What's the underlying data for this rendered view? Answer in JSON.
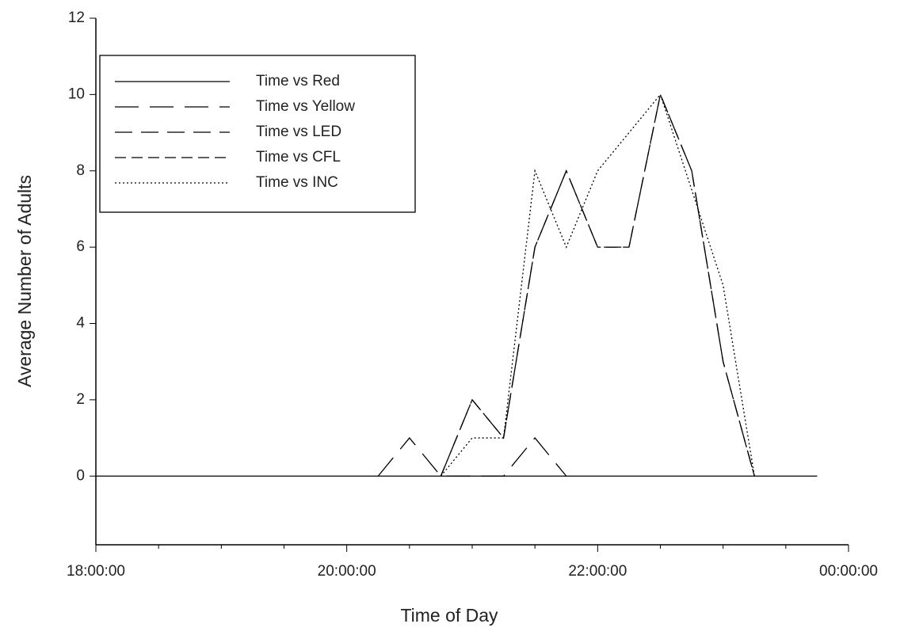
{
  "chart_data": {
    "type": "line",
    "xlabel": "Time of Day",
    "ylabel": "Average Number of Adults",
    "x": [
      18.0,
      18.25,
      18.5,
      18.75,
      19.0,
      19.25,
      19.5,
      19.75,
      20.0,
      20.25,
      20.5,
      20.75,
      21.0,
      21.25,
      21.5,
      21.75,
      22.0,
      22.25,
      22.5,
      22.75,
      23.0,
      23.25,
      23.5,
      23.75
    ],
    "series": [
      {
        "name": "Time vs Red",
        "color": "#000000",
        "dash": "none",
        "values": [
          0,
          0,
          0,
          0,
          0,
          0,
          0,
          0,
          0,
          0,
          0,
          0,
          0,
          0,
          0,
          0,
          0,
          0,
          0,
          0,
          0,
          0,
          0,
          0
        ]
      },
      {
        "name": "Time vs Yellow",
        "color": "#000000",
        "dash": "30,14",
        "values": [
          null,
          null,
          null,
          null,
          null,
          null,
          null,
          null,
          null,
          0,
          1,
          0,
          0,
          0,
          1,
          0,
          null,
          null,
          null,
          null,
          null,
          null,
          null,
          null
        ]
      },
      {
        "name": "Time vs LED",
        "color": "#000000",
        "dash": "22,11",
        "values": [
          null,
          null,
          null,
          null,
          null,
          null,
          null,
          null,
          null,
          null,
          null,
          0,
          2,
          1,
          6,
          8,
          6,
          6,
          10,
          8,
          3,
          0,
          null,
          null
        ]
      },
      {
        "name": "Time vs CFL",
        "color": "#000000",
        "dash": "14,7",
        "values": [
          null,
          null,
          null,
          null,
          null,
          null,
          null,
          null,
          null,
          null,
          null,
          0,
          2,
          1,
          6,
          8,
          6,
          6,
          10,
          8,
          3,
          0,
          null,
          null
        ]
      },
      {
        "name": "Time vs INC",
        "color": "#000000",
        "dash": "2,3",
        "values": [
          null,
          null,
          null,
          null,
          null,
          null,
          null,
          null,
          null,
          null,
          null,
          0,
          1,
          1,
          8,
          6,
          8,
          9,
          10,
          7.5,
          5,
          0,
          null,
          null
        ]
      }
    ],
    "xlim": [
      18,
      24
    ],
    "ylim": [
      -1.8,
      12
    ],
    "xticks": [
      {
        "value": 18,
        "label": "18:00:00"
      },
      {
        "value": 20,
        "label": "20:00:00"
      },
      {
        "value": 22,
        "label": "22:00:00"
      },
      {
        "value": 24,
        "label": "00:00:00"
      }
    ],
    "xminorticks": [
      18.5,
      19,
      19.5,
      20.5,
      21,
      21.5,
      22.5,
      23,
      23.5
    ],
    "yticks": [
      0,
      2,
      4,
      6,
      8,
      10,
      12
    ],
    "legend": "upper left"
  }
}
